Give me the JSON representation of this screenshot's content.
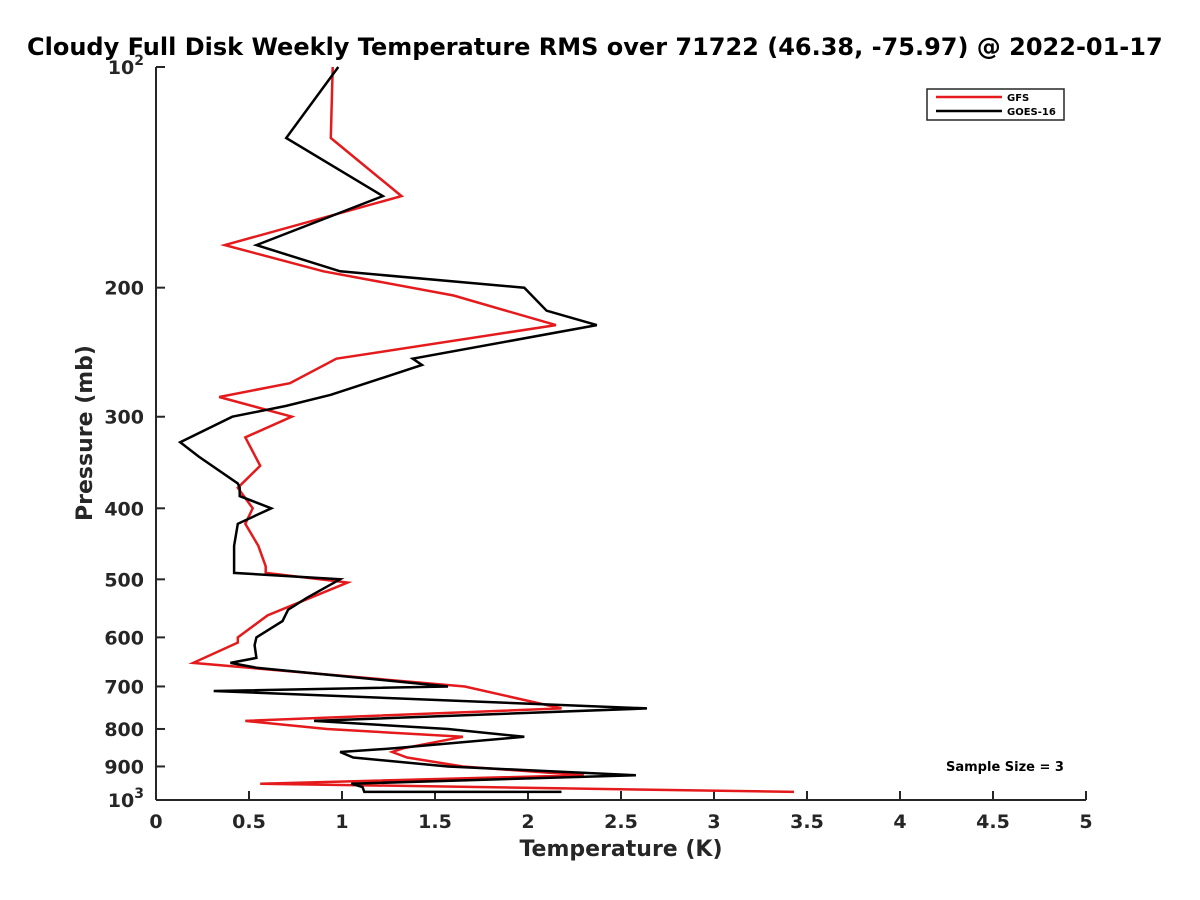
{
  "chart_data": {
    "type": "line",
    "title": "Cloudy Full Disk Weekly Temperature RMS over 71722 (46.38, -75.97) @ 2022-01-17",
    "xlabel": "Temperature (K)",
    "ylabel": "Pressure (mb)",
    "xlim": [
      0,
      5
    ],
    "ylim": [
      100,
      1000
    ],
    "y_scale": "log",
    "y_reversed": true,
    "grid": false,
    "legend_position": "top-right",
    "x_ticks": [
      "0",
      "0.5",
      "1",
      "1.5",
      "2",
      "2.5",
      "3",
      "3.5",
      "4",
      "4.5",
      "5"
    ],
    "y_ticks": [
      {
        "value": 100,
        "label": "10",
        "sup": "2"
      },
      {
        "value": 200,
        "label": "200",
        "sup": ""
      },
      {
        "value": 300,
        "label": "300",
        "sup": ""
      },
      {
        "value": 400,
        "label": "400",
        "sup": ""
      },
      {
        "value": 500,
        "label": "500",
        "sup": ""
      },
      {
        "value": 600,
        "label": "600",
        "sup": ""
      },
      {
        "value": 700,
        "label": "700",
        "sup": ""
      },
      {
        "value": 800,
        "label": "800",
        "sup": ""
      },
      {
        "value": 900,
        "label": "900",
        "sup": ""
      },
      {
        "value": 1000,
        "label": "10",
        "sup": "3"
      }
    ],
    "series": [
      {
        "name": "GFS",
        "color": "#e41a1c",
        "points": [
          [
            0.95,
            100
          ],
          [
            0.94,
            125
          ],
          [
            1.32,
            150
          ],
          [
            0.37,
            175
          ],
          [
            0.9,
            190
          ],
          [
            1.6,
            205
          ],
          [
            2.15,
            225
          ],
          [
            0.97,
            250
          ],
          [
            0.72,
            270
          ],
          [
            0.34,
            282
          ],
          [
            0.73,
            300
          ],
          [
            0.48,
            320
          ],
          [
            0.56,
            350
          ],
          [
            0.44,
            375
          ],
          [
            0.52,
            400
          ],
          [
            0.48,
            420
          ],
          [
            0.55,
            450
          ],
          [
            0.59,
            480
          ],
          [
            0.59,
            490
          ],
          [
            1.03,
            505
          ],
          [
            0.6,
            560
          ],
          [
            0.44,
            600
          ],
          [
            0.44,
            610
          ],
          [
            0.2,
            650
          ],
          [
            1.66,
            700
          ],
          [
            2.18,
            750
          ],
          [
            0.48,
            780
          ],
          [
            0.92,
            800
          ],
          [
            1.65,
            820
          ],
          [
            1.33,
            850
          ],
          [
            1.27,
            860
          ],
          [
            1.35,
            875
          ],
          [
            1.65,
            900
          ],
          [
            2.3,
            925
          ],
          [
            0.56,
            950
          ],
          [
            3.43,
            975
          ]
        ]
      },
      {
        "name": "GOES-16",
        "color": "#000000",
        "points": [
          [
            0.98,
            100
          ],
          [
            0.7,
            125
          ],
          [
            1.22,
            150
          ],
          [
            0.54,
            175
          ],
          [
            0.99,
            190
          ],
          [
            1.98,
            200
          ],
          [
            2.1,
            215
          ],
          [
            2.37,
            225
          ],
          [
            1.38,
            250
          ],
          [
            1.43,
            255
          ],
          [
            0.94,
            280
          ],
          [
            0.7,
            290
          ],
          [
            0.41,
            300
          ],
          [
            0.13,
            325
          ],
          [
            0.23,
            340
          ],
          [
            0.44,
            370
          ],
          [
            0.45,
            375
          ],
          [
            0.45,
            385
          ],
          [
            0.62,
            400
          ],
          [
            0.44,
            420
          ],
          [
            0.42,
            450
          ],
          [
            0.42,
            475
          ],
          [
            0.42,
            490
          ],
          [
            0.99,
            500
          ],
          [
            0.81,
            530
          ],
          [
            0.71,
            550
          ],
          [
            0.68,
            570
          ],
          [
            0.54,
            600
          ],
          [
            0.53,
            615
          ],
          [
            0.54,
            640
          ],
          [
            0.4,
            650
          ],
          [
            0.54,
            660
          ],
          [
            1.57,
            700
          ],
          [
            0.31,
            710
          ],
          [
            2.64,
            750
          ],
          [
            0.85,
            780
          ],
          [
            1.57,
            800
          ],
          [
            1.98,
            820
          ],
          [
            1.28,
            850
          ],
          [
            0.99,
            860
          ],
          [
            1.06,
            875
          ],
          [
            1.57,
            900
          ],
          [
            2.58,
            925
          ],
          [
            1.05,
            950
          ],
          [
            1.11,
            960
          ],
          [
            1.12,
            975
          ],
          [
            2.18,
            975
          ]
        ]
      }
    ],
    "legend": [
      {
        "label": "GFS",
        "color": "#e41a1c"
      },
      {
        "label": "GOES-16",
        "color": "#000000"
      }
    ],
    "annotation": "Sample Size = 3"
  }
}
